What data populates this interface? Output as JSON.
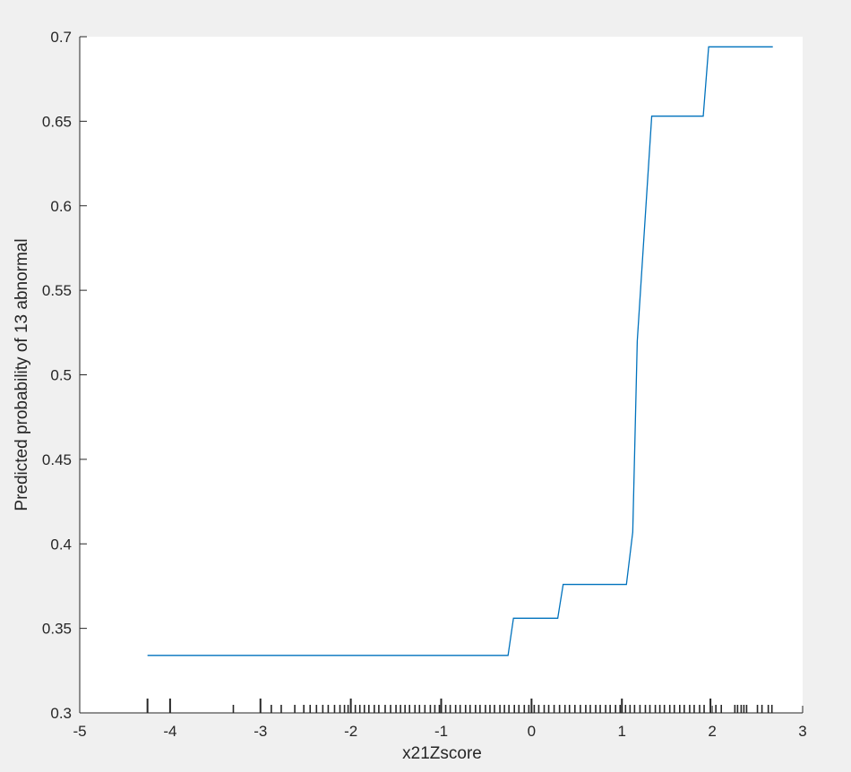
{
  "chart_data": {
    "type": "line",
    "title": "",
    "xlabel": "x21Zscore",
    "ylabel": "Predicted probability of 13 abnormal",
    "xlim": [
      -5,
      3
    ],
    "ylim": [
      0.3,
      0.7
    ],
    "xticks": [
      -5,
      -4,
      -3,
      -2,
      -1,
      0,
      1,
      2,
      3
    ],
    "yticks": [
      0.3,
      0.35,
      0.4,
      0.45,
      0.5,
      0.55,
      0.6,
      0.65,
      0.7
    ],
    "xtick_labels": [
      "-5",
      "-4",
      "-3",
      "-2",
      "-1",
      "0",
      "1",
      "2",
      "3"
    ],
    "ytick_labels": [
      "0.3",
      "0.35",
      "0.4",
      "0.45",
      "0.5",
      "0.55",
      "0.6",
      "0.65",
      "0.7"
    ],
    "grid": false,
    "line_color": "#0072bd",
    "axes_background": "#ffffff",
    "figure_background": "#f0f0f0",
    "series": [
      {
        "x": [
          -4.25,
          -0.26,
          -0.2,
          0.29,
          0.35,
          1.05,
          1.12,
          1.17,
          1.33,
          1.9,
          1.96,
          2.67
        ],
        "y": [
          0.334,
          0.334,
          0.356,
          0.356,
          0.376,
          0.376,
          0.407,
          0.52,
          0.653,
          0.653,
          0.694,
          0.694
        ]
      }
    ],
    "rug_major": [
      -4.25,
      -4.0,
      -3.0,
      -2.0,
      -1.0,
      0.0,
      1.0,
      1.98
    ],
    "rug_minor": [
      -3.3,
      -2.88,
      -2.77,
      -2.62,
      -2.52,
      -2.45,
      -2.38,
      -2.31,
      -2.25,
      -2.18,
      -2.12,
      -2.07,
      -2.03,
      -1.95,
      -1.9,
      -1.85,
      -1.8,
      -1.74,
      -1.69,
      -1.62,
      -1.56,
      -1.5,
      -1.45,
      -1.4,
      -1.35,
      -1.29,
      -1.24,
      -1.18,
      -1.12,
      -1.07,
      -1.02,
      -0.95,
      -0.9,
      -0.84,
      -0.79,
      -0.73,
      -0.68,
      -0.62,
      -0.57,
      -0.51,
      -0.46,
      -0.41,
      -0.35,
      -0.3,
      -0.25,
      -0.19,
      -0.14,
      -0.08,
      -0.03,
      0.03,
      0.08,
      0.14,
      0.19,
      0.25,
      0.31,
      0.37,
      0.42,
      0.48,
      0.54,
      0.6,
      0.65,
      0.71,
      0.76,
      0.82,
      0.87,
      0.93,
      0.98,
      1.04,
      1.09,
      1.14,
      1.2,
      1.26,
      1.31,
      1.37,
      1.42,
      1.47,
      1.53,
      1.58,
      1.64,
      1.69,
      1.75,
      1.8,
      1.86,
      1.91,
      2.04,
      2.1,
      2.25,
      2.28,
      2.32,
      2.35,
      2.38,
      2.5,
      2.55,
      2.62,
      2.66
    ]
  }
}
